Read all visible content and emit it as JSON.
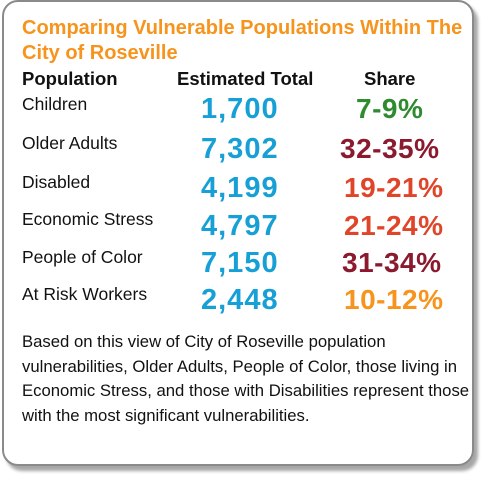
{
  "title": "Comparing Vulnerable Populations Within The City of Roseville",
  "headers": {
    "population": "Population",
    "total": "Estimated Total",
    "share": "Share"
  },
  "rows": [
    {
      "population": "Children",
      "total": "1,700",
      "share": "7-9%",
      "share_color": "#2e8b2e"
    },
    {
      "population": "Older Adults",
      "total": "7,302",
      "share": "32-35%",
      "share_color": "#8b1a2e"
    },
    {
      "population": "Disabled",
      "total": "4,199",
      "share": "19-21%",
      "share_color": "#e0452a"
    },
    {
      "population": "Economic Stress",
      "total": "4,797",
      "share": "21-24%",
      "share_color": "#e0452a"
    },
    {
      "population": "People of Color",
      "total": "7,150",
      "share": "31-34%",
      "share_color": "#8b1a2e"
    },
    {
      "population": "At Risk Workers",
      "total": "2,448",
      "share": "10-12%",
      "share_color": "#f7941d"
    }
  ],
  "summary": "Based on this view of City of Roseville population vulnerabilities, Older Adults, People of Color, those living in Economic Stress, and those with Disabilities represent those with the most significant vulnerabilities.",
  "colors": {
    "title": "#f7941d",
    "total": "#17a0d6",
    "border": "#8a8a8a"
  }
}
